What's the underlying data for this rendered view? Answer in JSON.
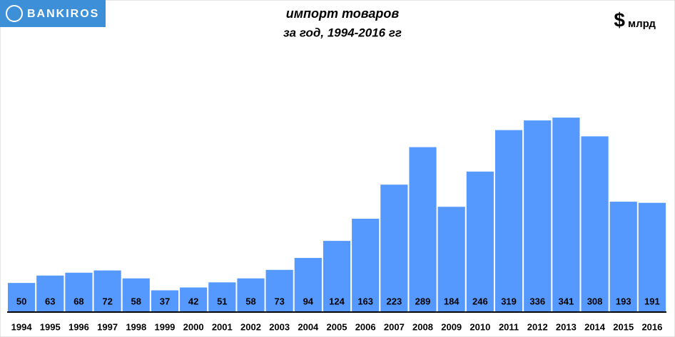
{
  "chart_data": {
    "type": "bar",
    "logo": "BANKIROS",
    "title": "импорт товаров",
    "subtitle": "за год, 1994-2016 гг",
    "unit_symbol": "$",
    "unit": "млрд",
    "categories": [
      "1994",
      "1995",
      "1996",
      "1997",
      "1998",
      "1999",
      "2000",
      "2001",
      "2002",
      "2003",
      "2004",
      "2005",
      "2006",
      "2007",
      "2008",
      "2009",
      "2010",
      "2011",
      "2012",
      "2013",
      "2014",
      "2015",
      "2016"
    ],
    "values": [
      50,
      63,
      68,
      72,
      58,
      37,
      42,
      51,
      58,
      73,
      94,
      124,
      163,
      223,
      289,
      184,
      246,
      319,
      336,
      341,
      308,
      193,
      191
    ],
    "color": "#5599ff",
    "ylim": [
      0,
      400
    ]
  }
}
